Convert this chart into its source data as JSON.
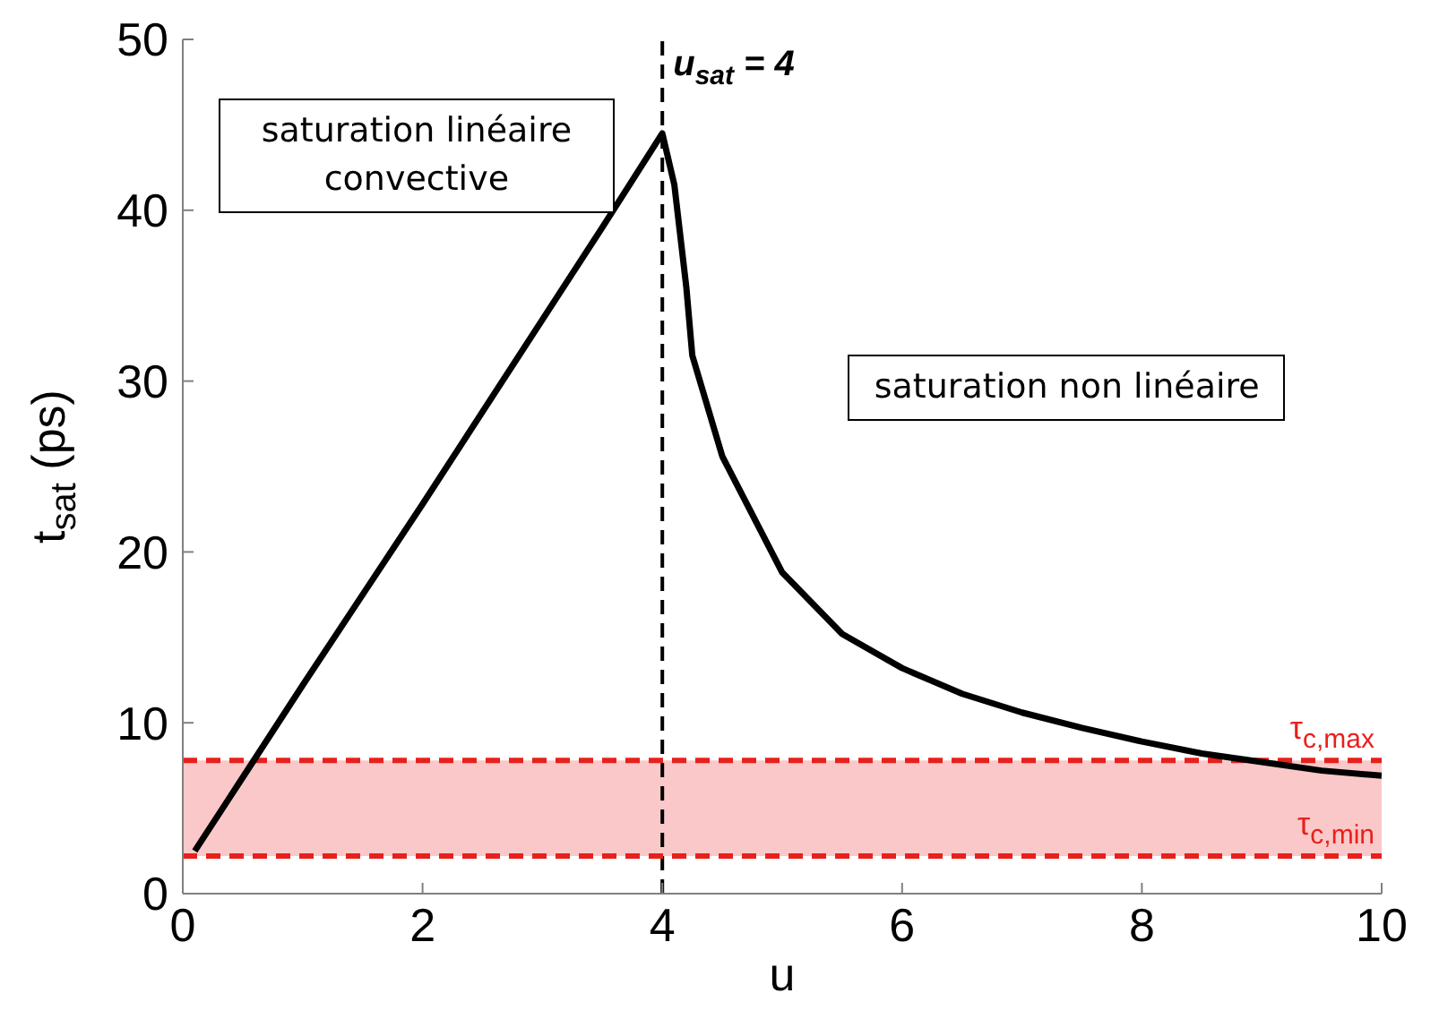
{
  "chart_data": {
    "type": "line",
    "xlabel": "u",
    "ylabel": "t$_{sat}$ (ps)",
    "x": [
      0.1,
      0.5,
      1,
      1.5,
      2,
      2.5,
      3,
      3.5,
      4,
      4.1,
      4.2,
      4.25,
      4.5,
      5,
      5.5,
      6,
      6.5,
      7,
      7.5,
      8,
      8.5,
      9,
      9.5,
      10
    ],
    "series": [
      {
        "color": "#000000",
        "values": [
          2.5,
          6.8,
          12.2,
          17.5,
          22.8,
          28.2,
          33.6,
          39,
          44.5,
          41.5,
          35.5,
          31.5,
          25.6,
          18.8,
          15.2,
          13.2,
          11.7,
          10.6,
          9.7,
          8.9,
          8.2,
          7.7,
          7.2,
          6.9
        ]
      }
    ],
    "xlim": [
      0,
      10
    ],
    "xticks": [
      0,
      2,
      4,
      6,
      8,
      10
    ],
    "ylim": [
      0,
      50
    ],
    "yticks": [
      0,
      10,
      20,
      30,
      40,
      50
    ],
    "grid": false,
    "legend": false,
    "marker": "none",
    "line_style": "solid",
    "ref_lines": [
      {
        "axis": "x",
        "value": 4,
        "label": "u$_{sat}$ = 4",
        "color": "#000000",
        "line_style": "dashed"
      },
      {
        "axis": "y",
        "value": 7.8,
        "label": "τ$_{c,max}$",
        "color": "#e8201c",
        "line_style": "dashed"
      },
      {
        "axis": "y",
        "value": 2.2,
        "label": "τ$_{c,min}$",
        "color": "#e8201c",
        "line_style": "dashed"
      }
    ],
    "bands": [
      {
        "axis": "y",
        "from": 2.2,
        "to": 7.8,
        "color": "#fac8c8"
      }
    ],
    "annotations": [
      "saturation linéaire convective",
      "saturation non linéaire"
    ]
  }
}
